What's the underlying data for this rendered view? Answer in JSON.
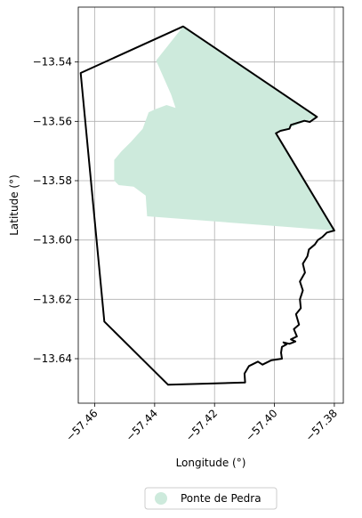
{
  "chart_data": {
    "type": "map",
    "xlabel": "Longitude (°)",
    "ylabel": "Latitude (°)",
    "xlim": [
      -57.4655,
      -57.377
    ],
    "ylim": [
      -13.655,
      -13.5215
    ],
    "grid": true,
    "xticks": [
      {
        "value": -57.46,
        "label": "−57.46"
      },
      {
        "value": -57.44,
        "label": "−57.44"
      },
      {
        "value": -57.42,
        "label": "−57.42"
      },
      {
        "value": -57.4,
        "label": "−57.40"
      },
      {
        "value": -57.38,
        "label": "−57.38"
      }
    ],
    "yticks": [
      {
        "value": -13.54,
        "label": "−13.54"
      },
      {
        "value": -13.56,
        "label": "−13.56"
      },
      {
        "value": -13.58,
        "label": "−13.58"
      },
      {
        "value": -13.6,
        "label": "−13.60"
      },
      {
        "value": -13.62,
        "label": "−13.62"
      },
      {
        "value": -13.64,
        "label": "−13.64"
      }
    ],
    "boundary": {
      "color": "#000000",
      "coords": [
        [
          -57.4647,
          -13.5437
        ],
        [
          -57.4305,
          -13.528
        ],
        [
          -57.3858,
          -13.5585
        ],
        [
          -57.3882,
          -13.5602
        ],
        [
          -57.39,
          -13.5598
        ],
        [
          -57.3945,
          -13.5612
        ],
        [
          -57.395,
          -13.5625
        ],
        [
          -57.398,
          -13.5632
        ],
        [
          -57.3995,
          -13.564
        ],
        [
          -57.38,
          -13.5968
        ],
        [
          -57.3825,
          -13.5975
        ],
        [
          -57.384,
          -13.599
        ],
        [
          -57.3855,
          -13.6
        ],
        [
          -57.3865,
          -13.6015
        ],
        [
          -57.3885,
          -13.6032
        ],
        [
          -57.389,
          -13.6055
        ],
        [
          -57.3905,
          -13.608
        ],
        [
          -57.3898,
          -13.611
        ],
        [
          -57.3915,
          -13.614
        ],
        [
          -57.3905,
          -13.617
        ],
        [
          -57.3915,
          -13.62
        ],
        [
          -57.3912,
          -13.623
        ],
        [
          -57.3928,
          -13.625
        ],
        [
          -57.3918,
          -13.6285
        ],
        [
          -57.3935,
          -13.63
        ],
        [
          -57.3925,
          -13.6325
        ],
        [
          -57.3945,
          -13.6335
        ],
        [
          -57.393,
          -13.6342
        ],
        [
          -57.395,
          -13.635
        ],
        [
          -57.397,
          -13.6345
        ],
        [
          -57.396,
          -13.6352
        ],
        [
          -57.3975,
          -13.636
        ],
        [
          -57.3978,
          -13.638
        ],
        [
          -57.3975,
          -13.64
        ],
        [
          -57.401,
          -13.6405
        ],
        [
          -57.404,
          -13.642
        ],
        [
          -57.4055,
          -13.641
        ],
        [
          -57.4085,
          -13.6425
        ],
        [
          -57.41,
          -13.645
        ],
        [
          -57.4098,
          -13.648
        ],
        [
          -57.4355,
          -13.6488
        ],
        [
          -57.4568,
          -13.6275
        ],
        [
          -57.4647,
          -13.5437
        ]
      ]
    },
    "region": {
      "name": "Ponte de Pedra",
      "color": "#cdeadc",
      "coords": [
        [
          -57.4395,
          -13.5395
        ],
        [
          -57.4305,
          -13.528
        ],
        [
          -57.3858,
          -13.5585
        ],
        [
          -57.3995,
          -13.564
        ],
        [
          -57.38,
          -13.5968
        ],
        [
          -57.4425,
          -13.592
        ],
        [
          -57.443,
          -13.585
        ],
        [
          -57.447,
          -13.582
        ],
        [
          -57.452,
          -13.5815
        ],
        [
          -57.4535,
          -13.58
        ],
        [
          -57.4535,
          -13.573
        ],
        [
          -57.451,
          -13.57
        ],
        [
          -57.448,
          -13.567
        ],
        [
          -57.444,
          -13.5625
        ],
        [
          -57.442,
          -13.557
        ],
        [
          -57.44,
          -13.556
        ],
        [
          -57.436,
          -13.5545
        ],
        [
          -57.433,
          -13.5555
        ],
        [
          -57.4345,
          -13.551
        ],
        [
          -57.4395,
          -13.5395
        ]
      ]
    },
    "legend": {
      "position": "bottom-center",
      "items": [
        {
          "label": "Ponte de Pedra",
          "color": "#cdeadc"
        }
      ]
    }
  }
}
